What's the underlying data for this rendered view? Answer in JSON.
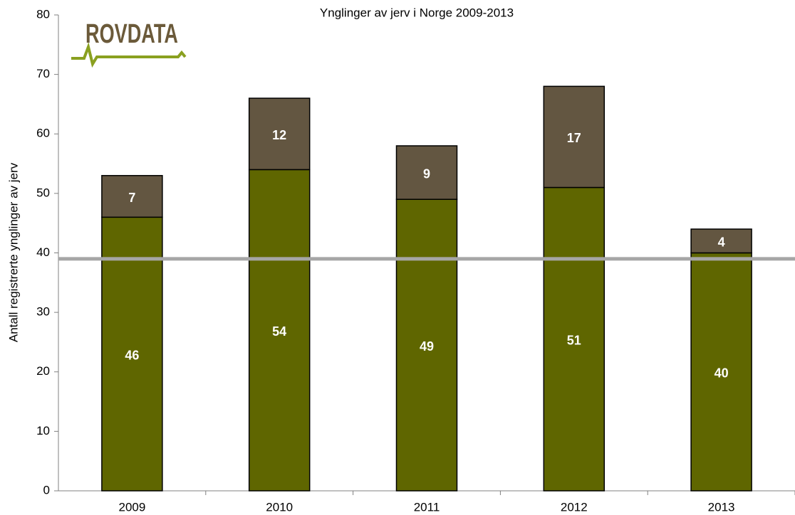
{
  "chart_data": {
    "type": "stacked_bar",
    "title": "Ynglinger av jerv i Norge 2009-2013",
    "logo": "ROVDATA",
    "y_label": "Antall registrerte ynglinger av jerv",
    "categories": [
      "2009",
      "2010",
      "2011",
      "2012",
      "2013"
    ],
    "series": [
      {
        "color": "#5f6600",
        "values": [
          46,
          54,
          49,
          51,
          40
        ]
      },
      {
        "color": "#635641",
        "values": [
          7,
          12,
          9,
          17,
          4
        ]
      }
    ],
    "reference_line": {
      "value": 39,
      "color": "#a6a6a6"
    },
    "ylim": [
      0,
      80
    ],
    "yticks": [
      0,
      10,
      20,
      30,
      40,
      50,
      60,
      70,
      80
    ]
  }
}
